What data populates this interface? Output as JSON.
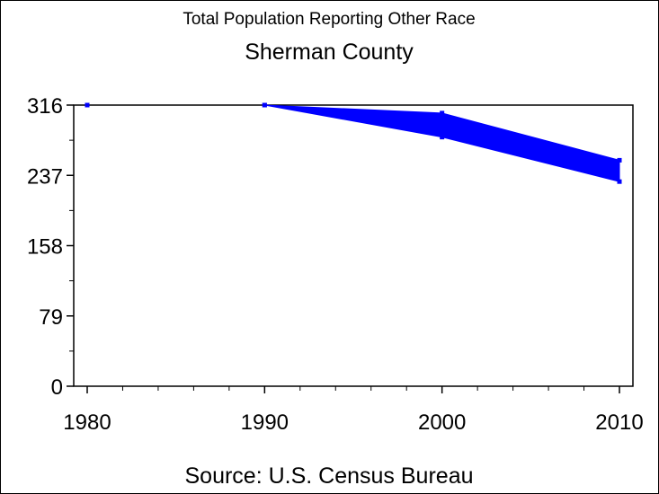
{
  "chart_data": {
    "type": "area",
    "title": "Total Population Reporting Other Race",
    "subtitle": "Sherman County",
    "footnote": "Source: U.S. Census Bureau",
    "xlabel": "",
    "ylabel": "",
    "x": [
      1980,
      1990,
      2000,
      2010
    ],
    "xticks": [
      "1980",
      "1990",
      "2000",
      "2010"
    ],
    "yticks": [
      "0",
      "79",
      "158",
      "237",
      "316"
    ],
    "ytick_values": [
      0,
      79,
      158,
      237,
      316
    ],
    "xlim": [
      1979.25,
      2010.75
    ],
    "ylim": [
      0,
      316
    ],
    "series": [
      {
        "name": "upper",
        "values": [
          316,
          316,
          307,
          254
        ]
      },
      {
        "name": "lower",
        "values": [
          316,
          316,
          280,
          230
        ]
      }
    ],
    "color": "#0000ff",
    "grid": false
  }
}
